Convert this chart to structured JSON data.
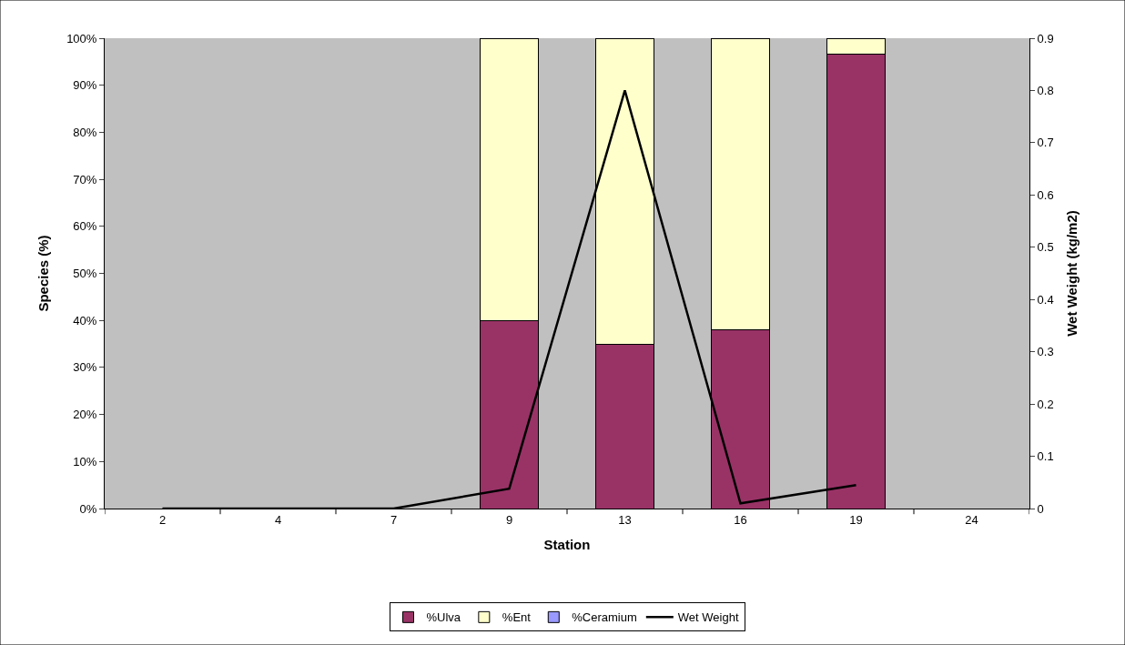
{
  "chart_data": {
    "type": "bar",
    "xlabel": "Station",
    "ylabel": "Species (%)",
    "y2label": "Wet Weight (kg/m2)",
    "categories": [
      "2",
      "4",
      "7",
      "9",
      "13",
      "16",
      "19",
      "24"
    ],
    "stacked": true,
    "series": [
      {
        "name": "%Ulva",
        "color": "#993366",
        "values": [
          null,
          null,
          null,
          40,
          35,
          38,
          96.6,
          null
        ]
      },
      {
        "name": "%Ent",
        "color": "#ffffcc",
        "values": [
          null,
          null,
          null,
          60,
          65,
          62,
          3.4,
          null
        ]
      },
      {
        "name": "%Ceramium",
        "color": "#9999ff",
        "values": [
          null,
          null,
          null,
          null,
          null,
          null,
          null,
          null
        ]
      },
      {
        "name": "Wet Weight",
        "type": "line",
        "axis": "y2",
        "color": "#000000",
        "values": [
          0,
          0,
          0,
          0.038,
          0.8,
          0.01,
          0.045,
          null
        ]
      }
    ],
    "ylim": [
      0,
      100
    ],
    "yticks": [
      {
        "value": 0,
        "label": "0%"
      },
      {
        "value": 10,
        "label": "10%"
      },
      {
        "value": 20,
        "label": "20%"
      },
      {
        "value": 30,
        "label": "30%"
      },
      {
        "value": 40,
        "label": "40%"
      },
      {
        "value": 50,
        "label": "50%"
      },
      {
        "value": 60,
        "label": "60%"
      },
      {
        "value": 70,
        "label": "70%"
      },
      {
        "value": 80,
        "label": "80%"
      },
      {
        "value": 90,
        "label": "90%"
      },
      {
        "value": 100,
        "label": "100%"
      }
    ],
    "y2lim": [
      0,
      0.9
    ],
    "y2ticks": [
      0,
      0.1,
      0.2,
      0.3,
      0.4,
      0.5,
      0.6,
      0.7,
      0.8,
      0.9
    ],
    "grid": false,
    "legend": "bottom",
    "marker": "none",
    "line_style": "solid"
  }
}
